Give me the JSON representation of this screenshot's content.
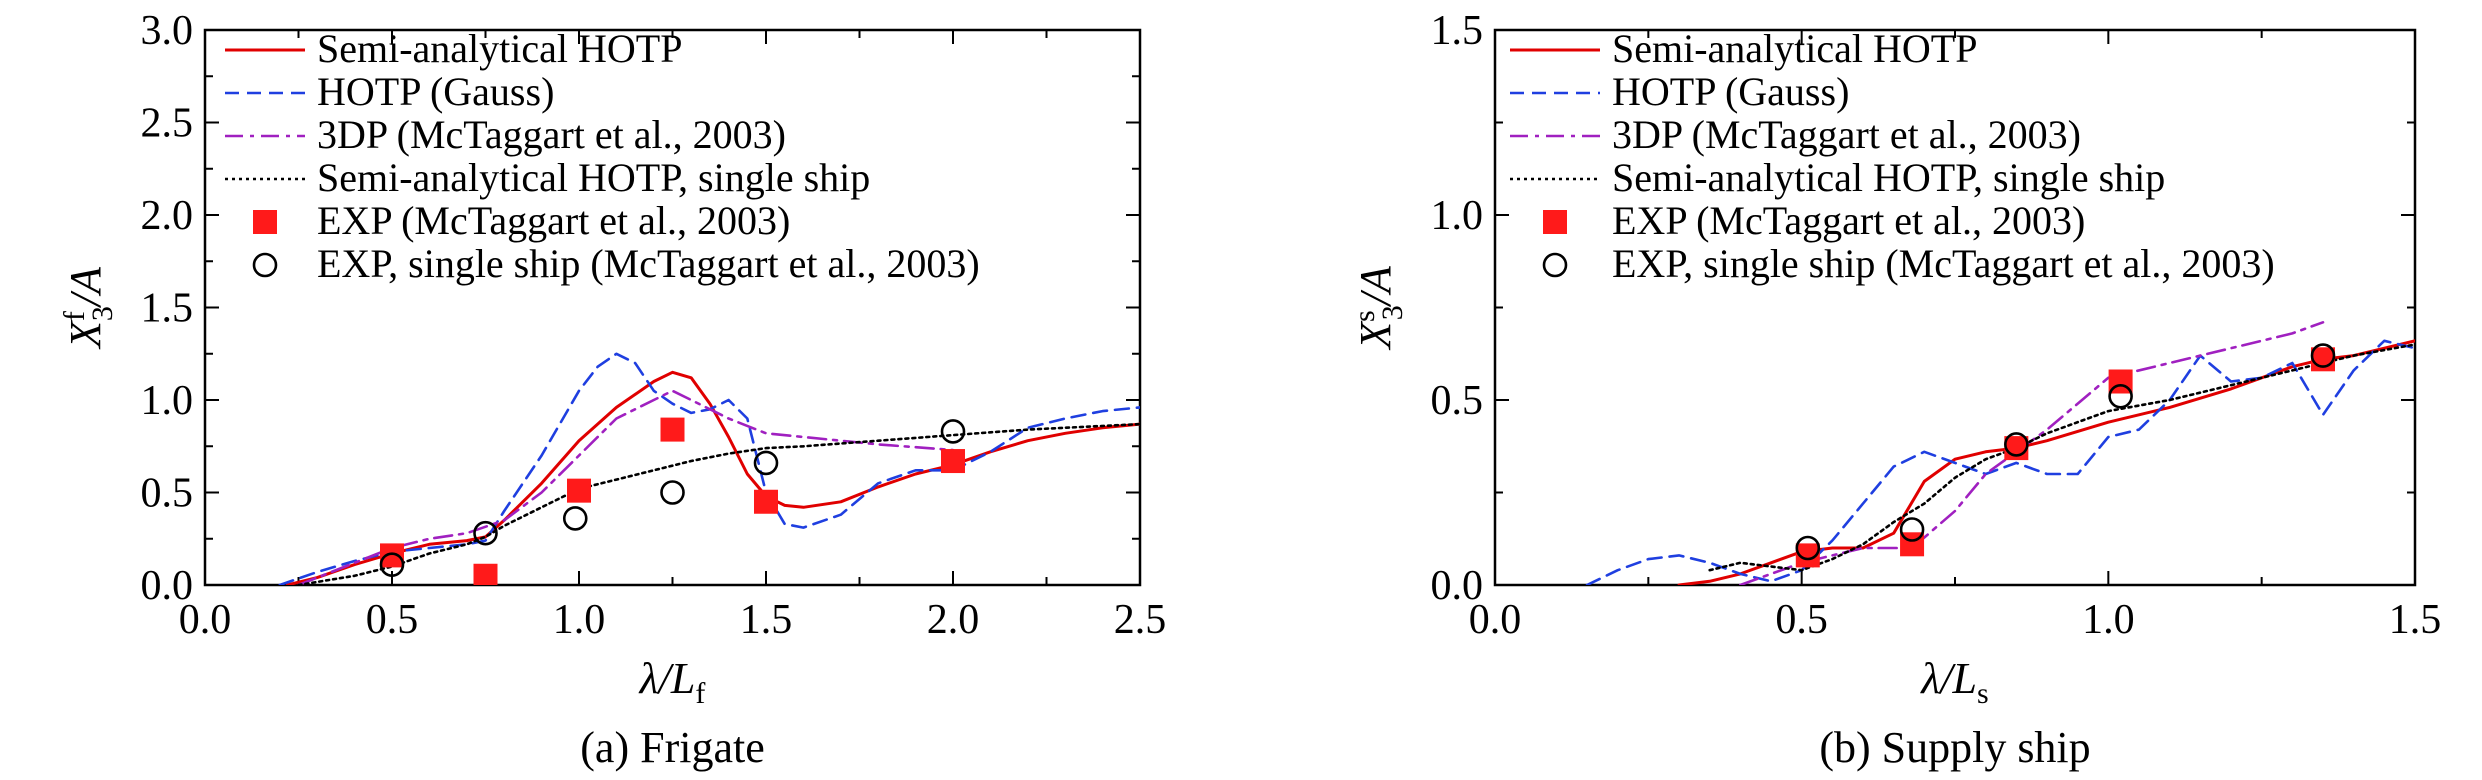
{
  "colors": {
    "semi_analytical": "#e00000",
    "hotp_gauss": "#1f3fe0",
    "dp3": "#a020c0",
    "single_ship": "#000000",
    "exp": "#ff1a1a",
    "exp_single": "#000000"
  },
  "chart_data": [
    {
      "type": "line",
      "caption": "(a) Frigate",
      "xlabel": "λ/L_f",
      "ylabel": "X3f/A",
      "xlim": [
        0.0,
        2.5
      ],
      "ylim": [
        0.0,
        3.0
      ],
      "x_ticks": [
        "0.0",
        "0.5",
        "1.0",
        "1.5",
        "2.0",
        "2.5"
      ],
      "y_ticks": [
        "0.0",
        "0.5",
        "1.0",
        "1.5",
        "2.0",
        "2.5",
        "3.0"
      ],
      "legend_position": "top",
      "series": [
        {
          "name": "Semi-analytical HOTP",
          "style": "solid",
          "color": "#e00000",
          "x": [
            0.22,
            0.3,
            0.4,
            0.5,
            0.6,
            0.7,
            0.75,
            0.8,
            0.9,
            1.0,
            1.1,
            1.2,
            1.25,
            1.3,
            1.35,
            1.4,
            1.45,
            1.5,
            1.55,
            1.6,
            1.7,
            1.8,
            1.9,
            2.0,
            2.1,
            2.2,
            2.3,
            2.4,
            2.5
          ],
          "y": [
            0.0,
            0.04,
            0.11,
            0.17,
            0.22,
            0.24,
            0.26,
            0.35,
            0.55,
            0.78,
            0.96,
            1.1,
            1.15,
            1.12,
            0.98,
            0.8,
            0.6,
            0.48,
            0.43,
            0.42,
            0.45,
            0.53,
            0.6,
            0.65,
            0.72,
            0.78,
            0.82,
            0.85,
            0.87
          ]
        },
        {
          "name": "HOTP (Gauss)",
          "style": "dashed",
          "color": "#1f3fe0",
          "x": [
            0.2,
            0.3,
            0.4,
            0.5,
            0.6,
            0.7,
            0.75,
            0.8,
            0.9,
            1.0,
            1.05,
            1.1,
            1.15,
            1.2,
            1.25,
            1.3,
            1.35,
            1.4,
            1.45,
            1.5,
            1.55,
            1.6,
            1.7,
            1.8,
            1.9,
            2.0,
            2.1,
            2.2,
            2.3,
            2.4,
            2.5
          ],
          "y": [
            0.0,
            0.07,
            0.13,
            0.18,
            0.2,
            0.22,
            0.24,
            0.4,
            0.7,
            1.05,
            1.18,
            1.25,
            1.2,
            1.05,
            0.98,
            0.93,
            0.95,
            1.0,
            0.9,
            0.5,
            0.33,
            0.31,
            0.38,
            0.55,
            0.62,
            0.62,
            0.72,
            0.85,
            0.9,
            0.94,
            0.96
          ]
        },
        {
          "name": "3DP (McTaggart et al., 2003)",
          "style": "dashdot",
          "color": "#a020c0",
          "x": [
            0.25,
            0.4,
            0.5,
            0.6,
            0.7,
            0.8,
            0.9,
            1.0,
            1.1,
            1.2,
            1.25,
            1.3,
            1.4,
            1.5,
            1.6,
            1.8,
            2.0
          ],
          "y": [
            0.0,
            0.12,
            0.2,
            0.25,
            0.28,
            0.35,
            0.5,
            0.7,
            0.9,
            1.0,
            1.05,
            1.0,
            0.9,
            0.82,
            0.8,
            0.76,
            0.73
          ]
        },
        {
          "name": "Semi-analytical HOTP, single ship",
          "style": "dotted",
          "color": "#000000",
          "x": [
            0.25,
            0.4,
            0.5,
            0.6,
            0.7,
            0.75,
            0.8,
            0.9,
            1.0,
            1.1,
            1.2,
            1.3,
            1.4,
            1.5,
            1.6,
            1.8,
            2.0,
            2.2,
            2.5
          ],
          "y": [
            0.0,
            0.05,
            0.1,
            0.17,
            0.22,
            0.26,
            0.32,
            0.42,
            0.52,
            0.57,
            0.62,
            0.67,
            0.71,
            0.74,
            0.75,
            0.78,
            0.81,
            0.84,
            0.87
          ]
        },
        {
          "name": "EXP (McTaggart et al., 2003)",
          "marker": "square",
          "color": "#ff1a1a",
          "x": [
            0.5,
            0.75,
            1.0,
            1.25,
            1.5,
            2.0
          ],
          "y": [
            0.16,
            0.05,
            0.51,
            0.84,
            0.45,
            0.67
          ]
        },
        {
          "name": "EXP, single ship (McTaggart et al., 2003)",
          "marker": "circle",
          "color": "#000000",
          "x": [
            0.5,
            0.75,
            0.99,
            1.25,
            1.5,
            2.0
          ],
          "y": [
            0.11,
            0.28,
            0.36,
            0.5,
            0.66,
            0.83
          ]
        }
      ]
    },
    {
      "type": "line",
      "caption": "(b) Supply ship",
      "xlabel": "λ/L_s",
      "ylabel": "X3s/A",
      "xlim": [
        0.0,
        1.5
      ],
      "ylim": [
        0.0,
        1.5
      ],
      "x_ticks": [
        "0.0",
        "0.5",
        "1.0",
        "1.5"
      ],
      "y_ticks": [
        "0.0",
        "0.5",
        "1.0",
        "1.5"
      ],
      "legend_position": "top",
      "series": [
        {
          "name": "Semi-analytical HOTP",
          "style": "solid",
          "color": "#e00000",
          "x": [
            0.3,
            0.35,
            0.4,
            0.45,
            0.5,
            0.55,
            0.6,
            0.65,
            0.7,
            0.75,
            0.8,
            0.85,
            0.9,
            1.0,
            1.1,
            1.2,
            1.3,
            1.35,
            1.4,
            1.5
          ],
          "y": [
            0.0,
            0.01,
            0.03,
            0.06,
            0.09,
            0.1,
            0.1,
            0.14,
            0.28,
            0.34,
            0.36,
            0.37,
            0.39,
            0.44,
            0.48,
            0.53,
            0.59,
            0.61,
            0.62,
            0.66
          ]
        },
        {
          "name": "HOTP (Gauss)",
          "style": "dashed",
          "color": "#1f3fe0",
          "x": [
            0.15,
            0.2,
            0.25,
            0.3,
            0.35,
            0.4,
            0.45,
            0.5,
            0.55,
            0.6,
            0.65,
            0.7,
            0.75,
            0.8,
            0.85,
            0.9,
            0.95,
            1.0,
            1.05,
            1.1,
            1.15,
            1.2,
            1.25,
            1.3,
            1.35,
            1.4,
            1.45,
            1.5
          ],
          "y": [
            0.0,
            0.04,
            0.07,
            0.08,
            0.06,
            0.03,
            0.01,
            0.04,
            0.12,
            0.22,
            0.32,
            0.36,
            0.33,
            0.3,
            0.33,
            0.3,
            0.3,
            0.4,
            0.42,
            0.5,
            0.62,
            0.55,
            0.56,
            0.6,
            0.46,
            0.58,
            0.66,
            0.64
          ]
        },
        {
          "name": "3DP (McTaggart et al., 2003)",
          "style": "dashdot",
          "color": "#a020c0",
          "x": [
            0.4,
            0.5,
            0.6,
            0.68,
            0.75,
            0.8,
            0.85,
            0.9,
            1.0,
            1.1,
            1.2,
            1.3,
            1.35
          ],
          "y": [
            0.0,
            0.06,
            0.1,
            0.1,
            0.2,
            0.3,
            0.36,
            0.42,
            0.56,
            0.6,
            0.64,
            0.68,
            0.71
          ]
        },
        {
          "name": "Semi-analytical HOTP, single ship",
          "style": "dotted",
          "color": "#000000",
          "x": [
            0.35,
            0.4,
            0.45,
            0.5,
            0.55,
            0.6,
            0.65,
            0.7,
            0.75,
            0.8,
            0.85,
            0.9,
            1.0,
            1.1,
            1.2,
            1.3,
            1.4,
            1.5
          ],
          "y": [
            0.04,
            0.06,
            0.05,
            0.04,
            0.07,
            0.11,
            0.17,
            0.22,
            0.29,
            0.34,
            0.37,
            0.41,
            0.47,
            0.5,
            0.54,
            0.58,
            0.62,
            0.65
          ]
        },
        {
          "name": "EXP (McTaggart et al., 2003)",
          "marker": "square",
          "color": "#ff1a1a",
          "x": [
            0.51,
            0.68,
            0.85,
            1.02,
            1.35
          ],
          "y": [
            0.08,
            0.11,
            0.37,
            0.55,
            0.61
          ]
        },
        {
          "name": "EXP, single ship (McTaggart et al., 2003)",
          "marker": "circle",
          "color": "#000000",
          "x": [
            0.51,
            0.68,
            0.85,
            1.02,
            1.35
          ],
          "y": [
            0.1,
            0.15,
            0.38,
            0.51,
            0.62
          ]
        }
      ]
    }
  ]
}
